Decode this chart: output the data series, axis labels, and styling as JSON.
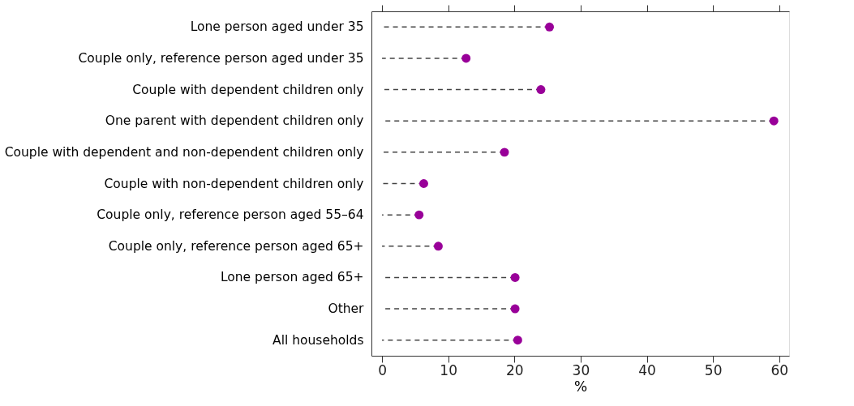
{
  "chart_data": {
    "type": "lollipop",
    "orientation": "horizontal",
    "xlabel": "%",
    "categories": [
      "Lone person aged under 35",
      "Couple only, reference person aged under 35",
      "Couple with dependent children only",
      "One parent with dependent children only",
      "Couple with dependent and non-dependent children only",
      "Couple with non-dependent children only",
      "Couple only, reference person aged 55–64",
      "Couple only, reference person aged 65+",
      "Lone person aged 65+",
      "Other",
      "All households"
    ],
    "series": [
      {
        "color": "#990099",
        "values": [
          25.3,
          12.7,
          24.0,
          59.2,
          18.5,
          6.3,
          5.6,
          8.5,
          20.1,
          20.1,
          20.5
        ]
      }
    ],
    "xlim": [
      -1.6,
      61.5
    ],
    "xticks": [
      0,
      10,
      20,
      30,
      40,
      50,
      60
    ],
    "marker": "circle",
    "line_style": "dashed",
    "grid": false
  }
}
